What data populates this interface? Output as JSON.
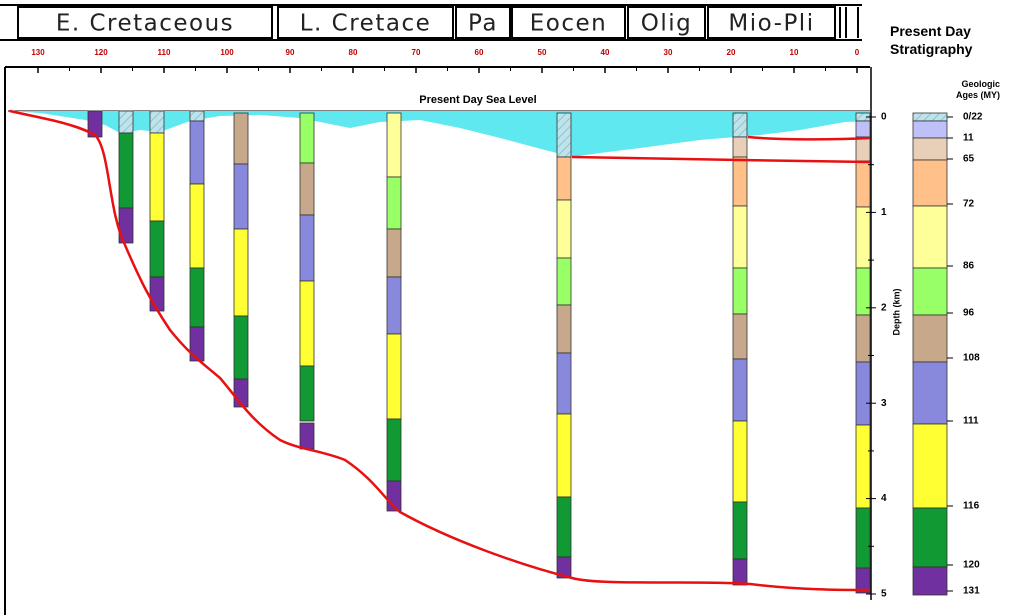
{
  "header": {
    "periods": [
      "E. Cretaceous",
      "L. Cretace",
      "Pa",
      "Eocen",
      "Olig",
      "Mio-Pli"
    ]
  },
  "age_axis": {
    "ticks": [
      130,
      120,
      110,
      100,
      90,
      80,
      70,
      60,
      50,
      40,
      30,
      20,
      10,
      0
    ]
  },
  "sea_level_label": "Present Day Sea Level",
  "depth_axis": {
    "label": "Depth (km)",
    "ticks": [
      0,
      1,
      2,
      3,
      4,
      5
    ]
  },
  "legend": {
    "title": "Present Day Stratigraphy",
    "subtitle": "Geologic Ages (MY)",
    "labels": [
      "0/22",
      "11",
      "65",
      "72",
      "86",
      "96",
      "108",
      "111",
      "116",
      "120",
      "131"
    ]
  }
}
